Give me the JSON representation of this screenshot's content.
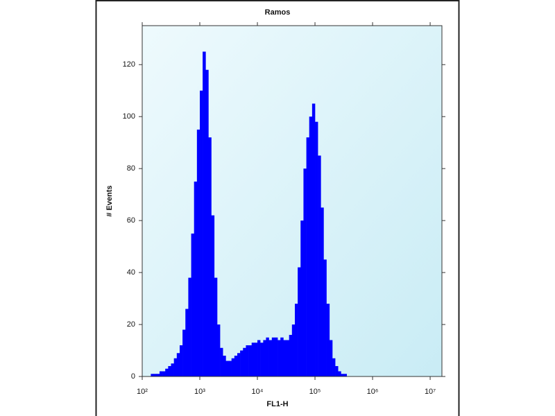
{
  "chart_data": {
    "type": "histogram",
    "title": "Ramos",
    "xlabel": "FL1-H",
    "ylabel": "# Events",
    "xscale": "log",
    "color": "#0000ff",
    "xlim": [
      100,
      16000000
    ],
    "ylim": [
      0,
      135
    ],
    "xticks": [
      {
        "value": 100,
        "label": "10²"
      },
      {
        "value": 1000,
        "label": "10³"
      },
      {
        "value": 10000,
        "label": "10⁴"
      },
      {
        "value": 100000,
        "label": "10⁵"
      },
      {
        "value": 1000000,
        "label": "10⁶"
      },
      {
        "value": 10000000,
        "label": "10⁷"
      }
    ],
    "yticks": [
      0,
      20,
      40,
      60,
      80,
      100,
      120
    ],
    "bins": [
      100,
      112,
      126,
      141,
      158,
      178,
      200,
      224,
      251,
      282,
      316,
      355,
      398,
      447,
      501,
      562,
      631,
      708,
      794,
      891,
      1000,
      1120,
      1260,
      1410,
      1580,
      1780,
      2000,
      2240,
      2510,
      2820,
      3160,
      3550,
      3980,
      4470,
      5010,
      5620,
      6310,
      7080,
      7940,
      8910,
      10000,
      11200,
      12600,
      14100,
      15800,
      17800,
      20000,
      22400,
      25100,
      28200,
      31600,
      35500,
      39800,
      44700,
      50100,
      56200,
      63100,
      70800,
      79400,
      89100,
      100000,
      112000,
      126000,
      141000,
      158000,
      178000,
      200000,
      224000,
      251000,
      282000,
      316000,
      355000,
      398000,
      447000,
      501000,
      562000,
      631000,
      708000,
      794000,
      891000,
      1000000,
      1120000,
      1260000,
      1410000,
      1580000,
      1780000,
      2000000,
      2240000,
      2510000,
      2820000,
      3160000,
      3550000,
      3980000,
      4470000,
      5010000,
      5620000,
      6310000,
      7080000,
      7940000,
      8910000,
      10000000
    ],
    "values": [
      0,
      0,
      0,
      1,
      1,
      1,
      2,
      2,
      3,
      4,
      5,
      7,
      9,
      12,
      18,
      26,
      38,
      55,
      75,
      95,
      110,
      125,
      118,
      92,
      62,
      38,
      20,
      11,
      8,
      6,
      6,
      7,
      8,
      9,
      10,
      11,
      12,
      12,
      13,
      13,
      14,
      13,
      14,
      15,
      14,
      15,
      15,
      14,
      15,
      14,
      14,
      16,
      20,
      28,
      42,
      60,
      80,
      92,
      100,
      105,
      98,
      85,
      65,
      45,
      28,
      14,
      7,
      4,
      2,
      1,
      1,
      0,
      0,
      0,
      0,
      0,
      0,
      0,
      0,
      0,
      0,
      0,
      0,
      0,
      0,
      0,
      0,
      0,
      0,
      0,
      0,
      0,
      0,
      0,
      0,
      0,
      0,
      0,
      0,
      0
    ]
  }
}
